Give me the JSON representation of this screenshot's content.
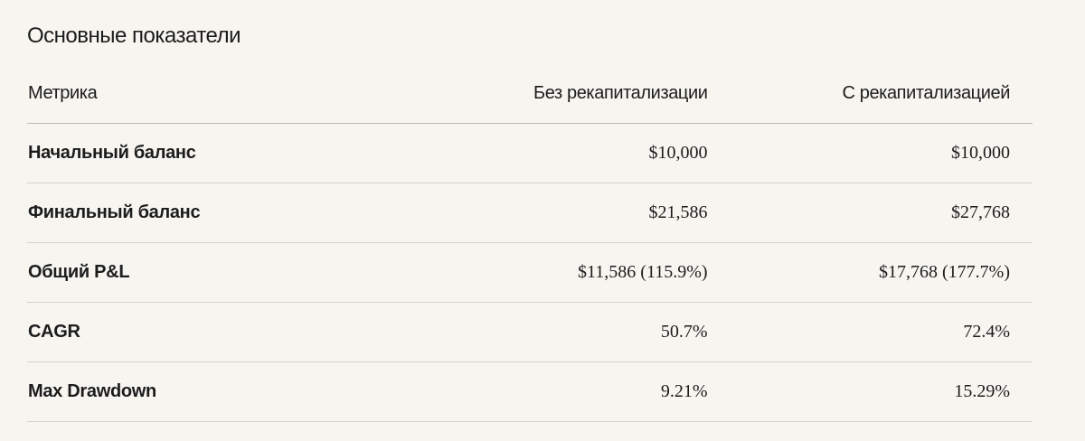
{
  "title": "Основные показатели",
  "table": {
    "header": [
      "Метрика",
      "Без рекапитализации",
      "С рекапитализацией"
    ],
    "rows": [
      [
        "Начальный баланс",
        "$10,000",
        "$10,000"
      ],
      [
        "Финальный баланс",
        "$21,586",
        "$27,768"
      ],
      [
        "Общий P&L",
        "$11,586 (115.9%)",
        "$17,768 (177.7%)"
      ],
      [
        "CAGR",
        "50.7%",
        "72.4%"
      ],
      [
        "Max Drawdown",
        "9.21%",
        "15.29%"
      ]
    ]
  }
}
